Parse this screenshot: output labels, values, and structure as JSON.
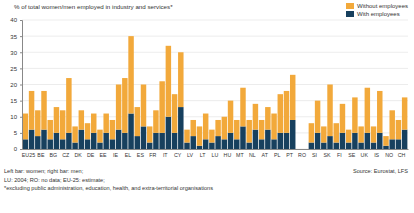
{
  "chart_data": {
    "type": "bar",
    "stacked": true,
    "grid": true,
    "legend": "top-right",
    "ylabel": "% of total women/men employed in industry and services*",
    "categories": [
      "EU25",
      null,
      "BE",
      null,
      "BG",
      null,
      "CZ",
      null,
      "DK",
      null,
      "DE",
      null,
      "EE",
      null,
      "IE",
      null,
      "EL",
      null,
      "ES",
      null,
      "FR",
      null,
      "IT",
      null,
      "CY",
      null,
      "LV",
      null,
      "LT",
      null,
      "LU",
      null,
      "HU",
      null,
      "MT",
      null,
      "NL",
      null,
      "AT",
      null,
      "PL",
      null,
      "PT",
      null,
      "RO",
      null,
      "SI",
      null,
      "SK",
      null,
      "FI",
      null,
      "SE",
      null,
      "UK",
      null,
      "IS",
      null,
      "NO",
      null,
      "CH",
      null
    ],
    "series": [
      {
        "name": "With employees",
        "color": "#17405e",
        "values": [
          3,
          6,
          4,
          6,
          3,
          5,
          3,
          5,
          2,
          6,
          3,
          5,
          2,
          5,
          3,
          6,
          5,
          11,
          4,
          7,
          2,
          5,
          5,
          10,
          5,
          13,
          2,
          4,
          1,
          3,
          2,
          4,
          3,
          5,
          3,
          7,
          2,
          6,
          3,
          6,
          3,
          5,
          5,
          9,
          null,
          null,
          2,
          5,
          2,
          4,
          2,
          5,
          2,
          5,
          2,
          5,
          2,
          5,
          1,
          3,
          3,
          6
        ]
      },
      {
        "name": "Without employees",
        "color": "#f2a93b",
        "values": [
          8,
          12,
          8,
          12,
          6,
          8,
          9,
          17,
          5,
          6,
          5,
          6,
          4,
          6,
          6,
          14,
          17,
          24,
          9,
          13,
          5,
          7,
          16,
          22,
          12,
          17,
          4,
          5,
          6,
          8,
          4,
          5,
          7,
          10,
          6,
          12,
          7,
          8,
          6,
          7,
          8,
          12,
          13,
          14,
          null,
          null,
          6,
          10,
          5,
          16,
          6,
          9,
          4,
          11,
          5,
          14,
          5,
          13,
          3,
          9,
          6,
          10
        ]
      }
    ],
    "ylim": [
      0,
      40
    ],
    "yticks": [
      0,
      5,
      10,
      15,
      20,
      25,
      30,
      35,
      40
    ],
    "annotations": [
      "Left bar: women; right bar: men;",
      "LU: 2004; RO: no data; EU-25: estimate;",
      "*excluding public administration, education, health, and extra-territorial organisations",
      "Source: Eurostat, LFS"
    ]
  }
}
